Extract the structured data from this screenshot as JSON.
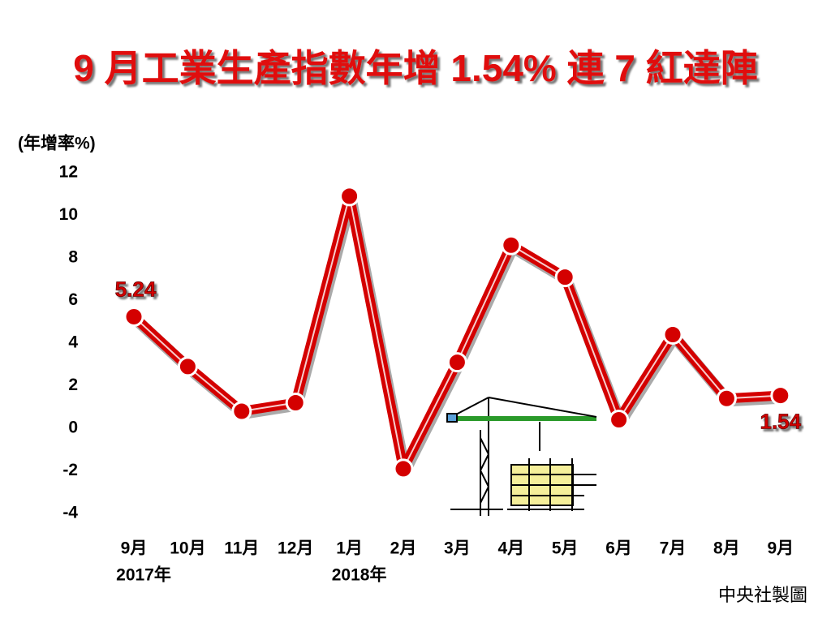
{
  "chart_data": {
    "type": "line",
    "title": "9 月工業生產指數年增 1.54% 連 7 紅達陣",
    "y_label": "(年增率%)",
    "source": "中央社製圖",
    "categories": [
      "9月",
      "10月",
      "11月",
      "12月",
      "1月",
      "2月",
      "3月",
      "4月",
      "5月",
      "6月",
      "7月",
      "8月",
      "9月"
    ],
    "year_labels": [
      "2017年",
      null,
      null,
      null,
      "2018年",
      null,
      null,
      null,
      null,
      null,
      null,
      null,
      null
    ],
    "values": [
      5.24,
      2.9,
      0.8,
      1.2,
      10.9,
      -1.9,
      3.1,
      8.6,
      7.1,
      0.4,
      4.4,
      1.4,
      1.54
    ],
    "value_labels": [
      "5.24",
      null,
      null,
      null,
      null,
      null,
      null,
      null,
      null,
      null,
      null,
      null,
      "1.54"
    ],
    "color": "#d40000",
    "ylim": [
      -4,
      12
    ],
    "yticks": [
      -4,
      -2,
      0,
      2,
      4,
      6,
      8,
      10,
      12
    ]
  }
}
